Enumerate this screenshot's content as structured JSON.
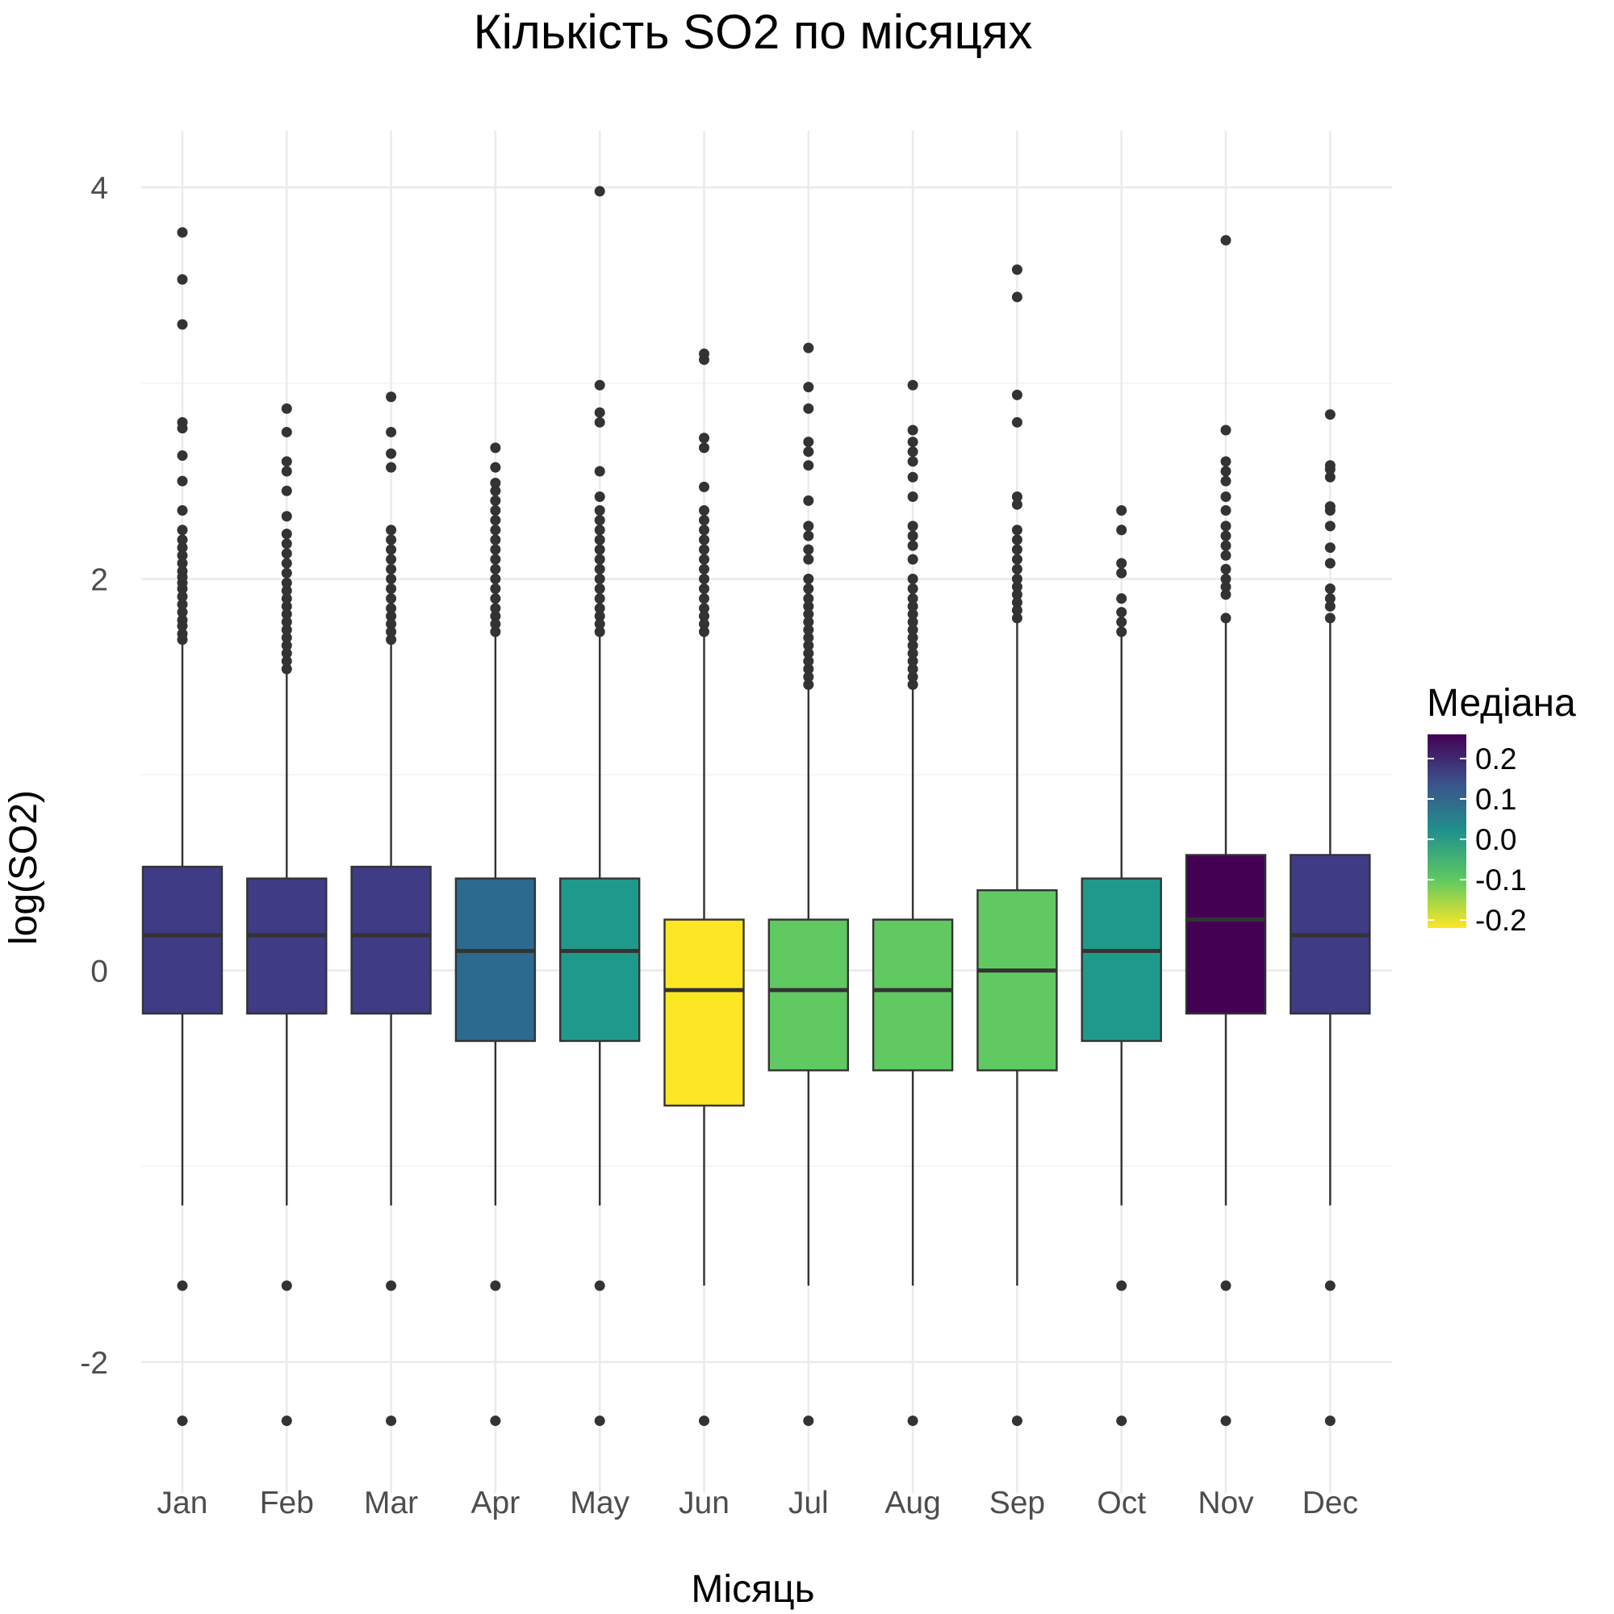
{
  "chart_data": {
    "type": "box",
    "title": "Кількість SO2 по місяцях",
    "xlabel": "Місяць",
    "ylabel": "log(SO2)",
    "ylim": [
      -2.6,
      4.3
    ],
    "yticks": [
      -2,
      0,
      2,
      4
    ],
    "grid": true,
    "categories": [
      "Jan",
      "Feb",
      "Mar",
      "Apr",
      "May",
      "Jun",
      "Jul",
      "Aug",
      "Sep",
      "Oct",
      "Nov",
      "Dec"
    ],
    "boxes": [
      {
        "month": "Jan",
        "q1": -0.22,
        "median": 0.18,
        "q3": 0.53,
        "whisker_low": -1.2,
        "whisker_high": 1.68,
        "fill": "#3f3b85",
        "outliers": [
          -1.61,
          -2.3,
          1.69,
          1.72,
          1.76,
          1.79,
          1.83,
          1.87,
          1.91,
          1.95,
          1.98,
          2.01,
          2.04,
          2.08,
          2.12,
          2.16,
          2.2,
          2.25,
          2.35,
          2.5,
          2.63,
          2.77,
          2.8,
          3.3,
          3.53,
          3.77
        ]
      },
      {
        "month": "Feb",
        "q1": -0.22,
        "median": 0.18,
        "q3": 0.47,
        "whisker_low": -1.2,
        "whisker_high": 1.53,
        "fill": "#3f3b85",
        "outliers": [
          -1.61,
          -2.3,
          1.54,
          1.58,
          1.62,
          1.66,
          1.7,
          1.74,
          1.78,
          1.82,
          1.86,
          1.9,
          1.94,
          1.98,
          2.03,
          2.08,
          2.13,
          2.18,
          2.23,
          2.32,
          2.45,
          2.55,
          2.6,
          2.75,
          2.87
        ]
      },
      {
        "month": "Mar",
        "q1": -0.22,
        "median": 0.18,
        "q3": 0.53,
        "whisker_low": -1.2,
        "whisker_high": 1.68,
        "fill": "#3f3b85",
        "outliers": [
          -1.61,
          -2.3,
          1.69,
          1.73,
          1.77,
          1.81,
          1.85,
          1.9,
          1.95,
          2.0,
          2.05,
          2.1,
          2.15,
          2.2,
          2.25,
          2.57,
          2.64,
          2.75,
          2.93
        ]
      },
      {
        "month": "Apr",
        "q1": -0.36,
        "median": 0.1,
        "q3": 0.47,
        "whisker_low": -1.2,
        "whisker_high": 1.72,
        "fill": "#2c6b8f",
        "outliers": [
          -1.61,
          -2.3,
          1.73,
          1.77,
          1.81,
          1.85,
          1.9,
          1.95,
          2.0,
          2.05,
          2.1,
          2.15,
          2.2,
          2.25,
          2.3,
          2.35,
          2.4,
          2.45,
          2.49,
          2.57,
          2.67
        ]
      },
      {
        "month": "May",
        "q1": -0.36,
        "median": 0.1,
        "q3": 0.47,
        "whisker_low": -1.2,
        "whisker_high": 1.72,
        "fill": "#1f9a8a",
        "outliers": [
          -1.61,
          -2.3,
          1.73,
          1.77,
          1.81,
          1.85,
          1.9,
          1.95,
          2.0,
          2.05,
          2.1,
          2.15,
          2.2,
          2.25,
          2.3,
          2.35,
          2.42,
          2.55,
          2.8,
          2.85,
          2.99,
          3.98
        ]
      },
      {
        "month": "Jun",
        "q1": -0.69,
        "median": -0.1,
        "q3": 0.26,
        "whisker_low": -1.61,
        "whisker_high": 1.72,
        "fill": "#fde725",
        "outliers": [
          -2.3,
          1.73,
          1.77,
          1.81,
          1.85,
          1.9,
          1.95,
          2.0,
          2.05,
          2.1,
          2.15,
          2.2,
          2.25,
          2.3,
          2.35,
          2.47,
          2.67,
          2.72,
          3.12,
          3.15
        ]
      },
      {
        "month": "Jul",
        "q1": -0.51,
        "median": -0.1,
        "q3": 0.26,
        "whisker_low": -1.61,
        "whisker_high": 1.44,
        "fill": "#61c961",
        "outliers": [
          -2.3,
          1.46,
          1.5,
          1.54,
          1.58,
          1.62,
          1.66,
          1.7,
          1.74,
          1.78,
          1.82,
          1.86,
          1.9,
          1.95,
          2.0,
          2.1,
          2.15,
          2.22,
          2.27,
          2.4,
          2.58,
          2.65,
          2.7,
          2.87,
          2.98,
          3.18
        ]
      },
      {
        "month": "Aug",
        "q1": -0.51,
        "median": -0.1,
        "q3": 0.26,
        "whisker_low": -1.61,
        "whisker_high": 1.44,
        "fill": "#61c961",
        "outliers": [
          -2.3,
          1.46,
          1.5,
          1.54,
          1.58,
          1.62,
          1.66,
          1.7,
          1.74,
          1.78,
          1.82,
          1.86,
          1.9,
          1.95,
          2.0,
          2.1,
          2.17,
          2.22,
          2.27,
          2.42,
          2.52,
          2.6,
          2.65,
          2.7,
          2.76,
          2.99
        ]
      },
      {
        "month": "Sep",
        "q1": -0.51,
        "median": 0.0,
        "q3": 0.41,
        "whisker_low": -1.61,
        "whisker_high": 1.79,
        "fill": "#61c961",
        "outliers": [
          -2.3,
          1.8,
          1.84,
          1.88,
          1.92,
          1.96,
          2.0,
          2.05,
          2.1,
          2.15,
          2.2,
          2.25,
          2.38,
          2.42,
          2.8,
          2.94,
          3.44,
          3.58
        ]
      },
      {
        "month": "Oct",
        "q1": -0.36,
        "median": 0.1,
        "q3": 0.47,
        "whisker_low": -1.2,
        "whisker_high": 1.72,
        "fill": "#1f9a8a",
        "outliers": [
          -1.61,
          -2.3,
          1.73,
          1.78,
          1.83,
          1.9,
          2.03,
          2.08,
          2.25,
          2.35
        ]
      },
      {
        "month": "Nov",
        "q1": -0.22,
        "median": 0.26,
        "q3": 0.59,
        "whisker_low": -1.2,
        "whisker_high": 1.79,
        "fill": "#440154",
        "outliers": [
          -1.61,
          -2.3,
          1.8,
          1.92,
          1.96,
          2.0,
          2.05,
          2.12,
          2.17,
          2.22,
          2.27,
          2.35,
          2.42,
          2.5,
          2.55,
          2.6,
          2.76,
          3.73
        ]
      },
      {
        "month": "Dec",
        "q1": -0.22,
        "median": 0.18,
        "q3": 0.59,
        "whisker_low": -1.2,
        "whisker_high": 1.79,
        "fill": "#3f3b85",
        "outliers": [
          -1.61,
          -2.3,
          1.8,
          1.86,
          1.9,
          1.95,
          2.08,
          2.16,
          2.27,
          2.35,
          2.37,
          2.52,
          2.56,
          2.58,
          2.84
        ]
      }
    ],
    "legend": {
      "title": "Медіана",
      "placement": "right",
      "colormap": "viridis (reversed)",
      "colors": [
        "#440154",
        "#3b528b",
        "#21918c",
        "#5ec962",
        "#fde725"
      ],
      "range": [
        0.26,
        -0.22
      ],
      "ticks": [
        {
          "value": 0.2,
          "label": "0.2"
        },
        {
          "value": 0.1,
          "label": "0.1"
        },
        {
          "value": 0.0,
          "label": "0.0"
        },
        {
          "value": -0.1,
          "label": "-0.1"
        },
        {
          "value": -0.2,
          "label": "-0.2"
        }
      ]
    }
  }
}
